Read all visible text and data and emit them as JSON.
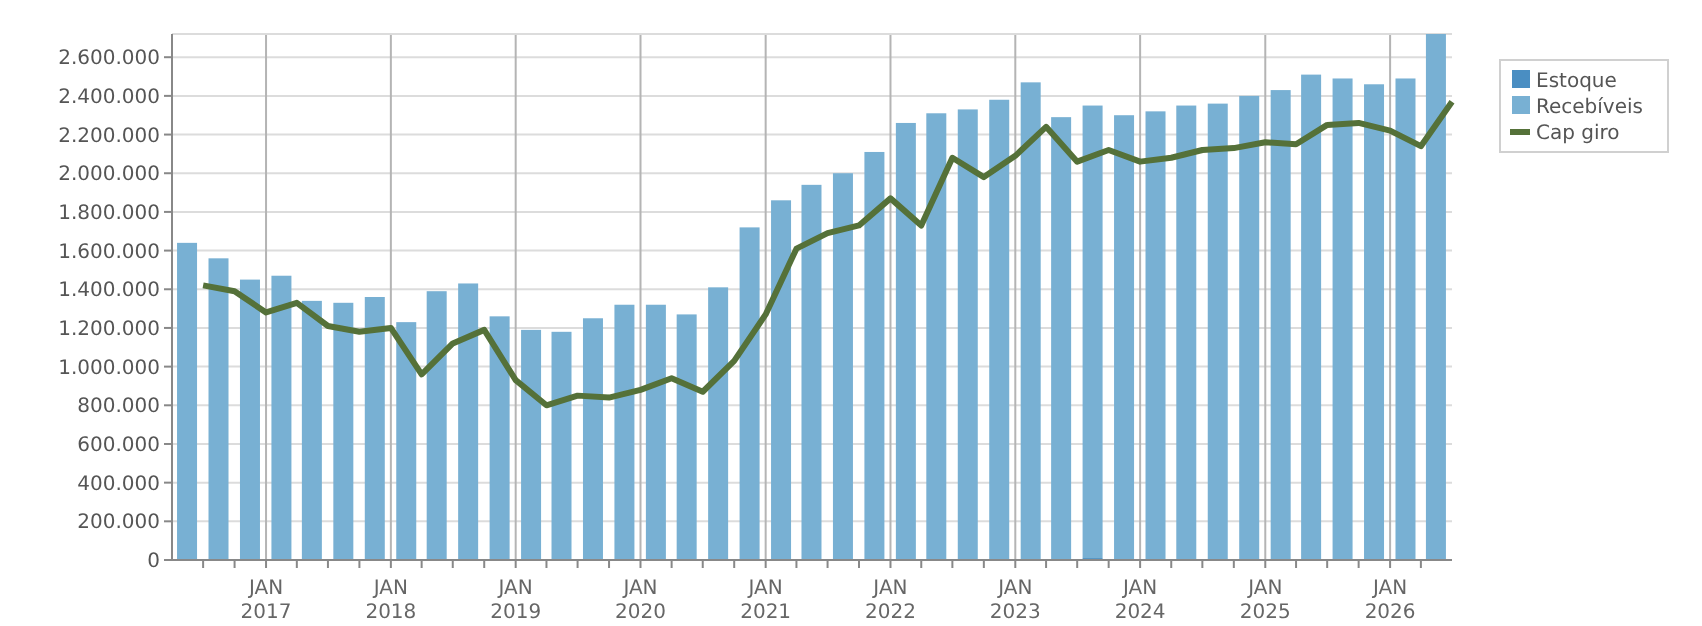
{
  "chart_data": {
    "type": "bar",
    "stacked": true,
    "grid": true,
    "legend": "top right",
    "xlim": [
      "2016-04-01",
      "2026-07-01"
    ],
    "xticks": [
      {
        "value": "2016-07-01",
        "label": null
      },
      {
        "value": "2016-10-01",
        "label": null
      },
      {
        "value": "2017-01-01",
        "label": "JAN\n2017"
      },
      {
        "value": "2017-04-01",
        "label": null
      },
      {
        "value": "2017-07-01",
        "label": null
      },
      {
        "value": "2017-10-01",
        "label": null
      },
      {
        "value": "2018-01-01",
        "label": "JAN\n2018"
      },
      {
        "value": "2018-04-01",
        "label": null
      },
      {
        "value": "2018-07-01",
        "label": null
      },
      {
        "value": "2018-10-01",
        "label": null
      },
      {
        "value": "2019-01-01",
        "label": "JAN\n2019"
      },
      {
        "value": "2019-04-01",
        "label": null
      },
      {
        "value": "2019-07-01",
        "label": null
      },
      {
        "value": "2019-10-01",
        "label": null
      },
      {
        "value": "2020-01-01",
        "label": "JAN\n2020"
      },
      {
        "value": "2020-04-01",
        "label": null
      },
      {
        "value": "2020-07-01",
        "label": null
      },
      {
        "value": "2020-10-01",
        "label": null
      },
      {
        "value": "2021-01-01",
        "label": "JAN\n2021"
      },
      {
        "value": "2021-04-01",
        "label": null
      },
      {
        "value": "2021-07-01",
        "label": null
      },
      {
        "value": "2021-10-01",
        "label": null
      },
      {
        "value": "2022-01-01",
        "label": "JAN\n2022"
      },
      {
        "value": "2022-04-01",
        "label": null
      },
      {
        "value": "2022-07-01",
        "label": null
      },
      {
        "value": "2022-10-01",
        "label": null
      },
      {
        "value": "2023-01-01",
        "label": "JAN\n2023"
      },
      {
        "value": "2023-04-01",
        "label": null
      },
      {
        "value": "2023-07-01",
        "label": null
      },
      {
        "value": "2023-10-01",
        "label": null
      },
      {
        "value": "2024-01-01",
        "label": "JAN\n2024"
      },
      {
        "value": "2024-04-01",
        "label": null
      },
      {
        "value": "2024-07-01",
        "label": null
      },
      {
        "value": "2024-10-01",
        "label": null
      },
      {
        "value": "2025-01-01",
        "label": "JAN\n2025"
      },
      {
        "value": "2025-04-01",
        "label": null
      },
      {
        "value": "2025-07-01",
        "label": null
      },
      {
        "value": "2025-10-01",
        "label": null
      },
      {
        "value": "2026-01-01",
        "label": "JAN\n2026"
      },
      {
        "value": "2026-04-01",
        "label": null
      }
    ],
    "ylim": [
      0,
      2720000
    ],
    "yticks": [
      0,
      {
        "value": 200000,
        "label": "200.000"
      },
      {
        "value": 400000,
        "label": "400.000"
      },
      {
        "value": 600000,
        "label": "600.000"
      },
      {
        "value": 800000,
        "label": "800.000"
      },
      {
        "value": 1000000,
        "label": "1.000.000"
      },
      {
        "value": 1200000,
        "label": "1.200.000"
      },
      {
        "value": 1400000,
        "label": "1.400.000"
      },
      {
        "value": 1600000,
        "label": "1.600.000"
      },
      {
        "value": 1800000,
        "label": "1.800.000"
      },
      {
        "value": 2000000,
        "label": "2.000.000"
      },
      {
        "value": 2200000,
        "label": "2.200.000"
      },
      {
        "value": 2400000,
        "label": "2.400.000"
      },
      {
        "value": 2600000,
        "label": "2.600.000"
      }
    ],
    "x": [
      "2016-05-15",
      "2016-08-15",
      "2016-11-15",
      "2017-02-15",
      "2017-05-15",
      "2017-08-15",
      "2017-11-15",
      "2018-02-15",
      "2018-05-15",
      "2018-08-15",
      "2018-11-15",
      "2019-02-15",
      "2019-05-15",
      "2019-08-15",
      "2019-11-15",
      "2020-02-15",
      "2020-05-15",
      "2020-08-15",
      "2020-11-15",
      "2021-02-15",
      "2021-05-15",
      "2021-08-15",
      "2021-11-15",
      "2022-02-15",
      "2022-05-15",
      "2022-08-15",
      "2022-11-15",
      "2023-02-15",
      "2023-05-15",
      "2023-08-15",
      "2023-11-15",
      "2024-02-15",
      "2024-05-15",
      "2024-08-15",
      "2024-11-15",
      "2025-02-15",
      "2025-05-15",
      "2025-08-15",
      "2025-11-15",
      "2026-02-15",
      "2026-05-15"
    ],
    "series": [
      {
        "name": "Estoque",
        "color": "#4a8ec2",
        "values": [
          0,
          0,
          0,
          0,
          0,
          0,
          0,
          0,
          0,
          0,
          0,
          0,
          0,
          0,
          0,
          0,
          0,
          0,
          0,
          0,
          0,
          0,
          0,
          0,
          0,
          0,
          0,
          0,
          0,
          10000,
          0,
          0,
          0,
          0,
          0,
          0,
          0,
          0,
          0,
          0,
          0
        ]
      },
      {
        "name": "Recebíveis",
        "color": "#78b0d3",
        "values": [
          1640000,
          1560000,
          1450000,
          1470000,
          1340000,
          1330000,
          1360000,
          1230000,
          1390000,
          1430000,
          1260000,
          1190000,
          1180000,
          1250000,
          1320000,
          1320000,
          1270000,
          1410000,
          1720000,
          1860000,
          1940000,
          2000000,
          2110000,
          2260000,
          2310000,
          2330000,
          2380000,
          2470000,
          2290000,
          2340000,
          2300000,
          2320000,
          2350000,
          2360000,
          2400000,
          2430000,
          2510000,
          2490000,
          2460000,
          2490000,
          2720000
        ]
      },
      {
        "name": "Cap giro",
        "type": "line",
        "color": "#557139",
        "marker": "none",
        "line_style": "solid",
        "x": [
          "2016-07-01",
          "2016-10-01",
          "2017-01-01",
          "2017-04-01",
          "2017-07-01",
          "2017-10-01",
          "2018-01-01",
          "2018-04-01",
          "2018-07-01",
          "2018-10-01",
          "2019-01-01",
          "2019-04-01",
          "2019-07-01",
          "2019-10-01",
          "2020-01-01",
          "2020-04-01",
          "2020-07-01",
          "2020-10-01",
          "2021-01-01",
          "2021-04-01",
          "2021-07-01",
          "2021-10-01",
          "2022-01-01",
          "2022-04-01",
          "2022-07-01",
          "2022-10-01",
          "2023-01-01",
          "2023-04-01",
          "2023-07-01",
          "2023-10-01",
          "2024-01-01",
          "2024-04-01",
          "2024-07-01",
          "2024-10-01",
          "2025-01-01",
          "2025-04-01",
          "2025-07-01",
          "2025-10-01",
          "2026-01-01",
          "2026-04-01",
          "2026-07-01"
        ],
        "values": [
          1420000,
          1390000,
          1280000,
          1330000,
          1210000,
          1180000,
          1200000,
          960000,
          1120000,
          1190000,
          930000,
          800000,
          850000,
          840000,
          880000,
          940000,
          870000,
          1030000,
          1270000,
          1610000,
          1690000,
          1730000,
          1870000,
          1730000,
          2080000,
          1980000,
          2090000,
          2240000,
          2060000,
          2120000,
          2060000,
          2080000,
          2120000,
          2130000,
          2160000,
          2150000,
          2250000,
          2260000,
          2220000,
          2140000,
          2370000
        ]
      }
    ]
  }
}
